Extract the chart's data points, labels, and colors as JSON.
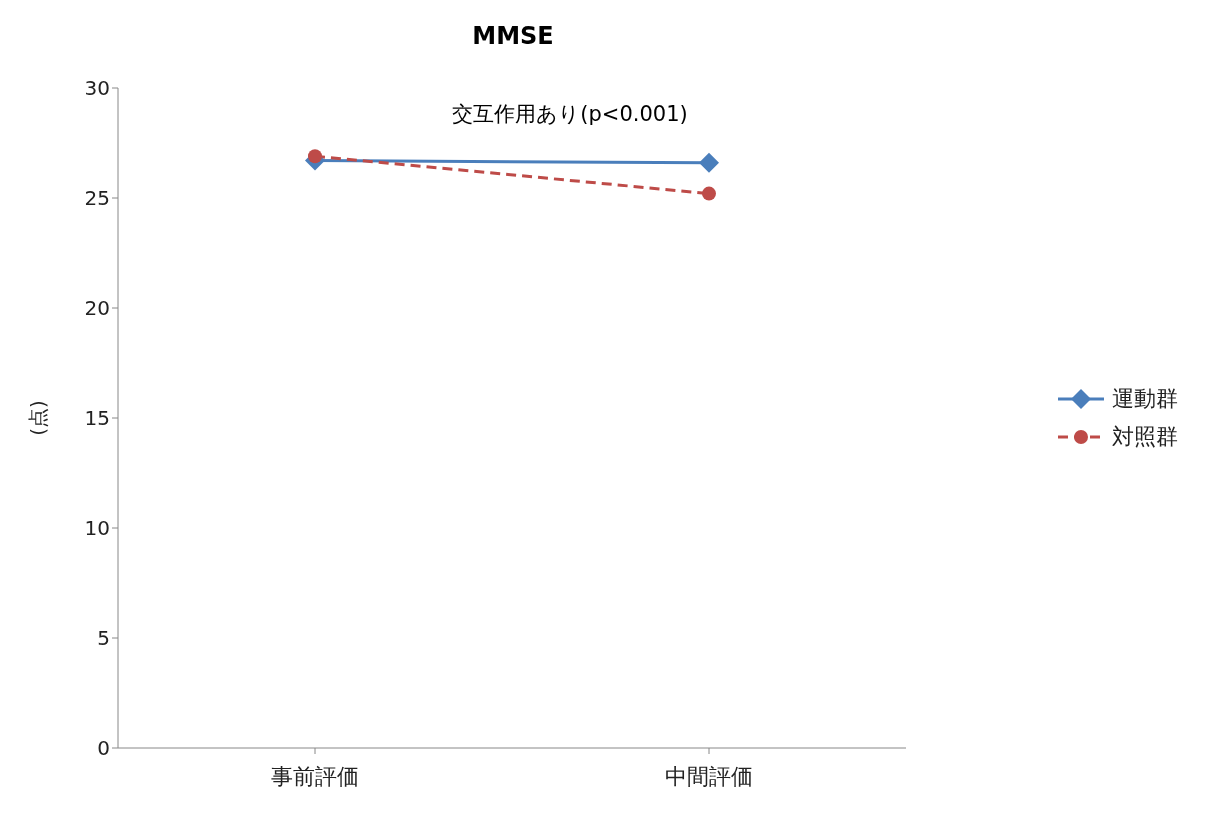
{
  "chart_data": {
    "type": "line",
    "title": "MMSE",
    "ylabel": "(点)",
    "categories": [
      "事前評価",
      "中間評価"
    ],
    "series": [
      {
        "name": "運動群",
        "color": "#4a7ebb",
        "values": [
          26.7,
          26.6
        ],
        "marker": "diamond",
        "line_style": "solid"
      },
      {
        "name": "対照群",
        "color": "#be4b48",
        "values": [
          26.9,
          25.2
        ],
        "marker": "circle",
        "line_style": "dashed"
      }
    ],
    "ylim": [
      0,
      30
    ],
    "yticks": [
      0,
      5,
      10,
      15,
      20,
      25,
      30
    ],
    "grid": false,
    "legend": "right",
    "annotations": [
      "交互作用あり(p<0.001)"
    ]
  }
}
